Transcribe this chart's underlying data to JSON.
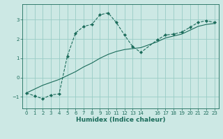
{
  "xlabel": "Humidex (Indice chaleur)",
  "bg_color": "#cce8e4",
  "grid_color": "#99ccc6",
  "line_color": "#1a6b5a",
  "xlim": [
    -0.5,
    23.5
  ],
  "ylim": [
    -1.6,
    3.8
  ],
  "yticks": [
    -1,
    0,
    1,
    2,
    3
  ],
  "xticks": [
    0,
    1,
    2,
    3,
    4,
    5,
    6,
    7,
    8,
    9,
    10,
    11,
    12,
    13,
    14,
    16,
    17,
    18,
    19,
    20,
    21,
    22,
    23
  ],
  "series1_x": [
    0,
    1,
    2,
    3,
    4,
    5,
    6,
    7,
    8,
    9,
    10,
    11,
    12,
    13,
    14,
    16,
    17,
    18,
    19,
    20,
    21,
    22,
    23
  ],
  "series1_y": [
    -0.8,
    -0.95,
    -1.1,
    -0.9,
    -0.85,
    1.1,
    2.3,
    2.65,
    2.75,
    3.25,
    3.35,
    2.85,
    2.2,
    1.6,
    1.3,
    1.95,
    2.2,
    2.25,
    2.35,
    2.6,
    2.85,
    2.95,
    2.85
  ],
  "series2_x": [
    0,
    1,
    2,
    3,
    4,
    5,
    6,
    7,
    8,
    9,
    10,
    11,
    12,
    13,
    14,
    16,
    17,
    18,
    19,
    20,
    21,
    22,
    23
  ],
  "series2_y": [
    -0.8,
    -0.6,
    -0.4,
    -0.25,
    -0.1,
    0.1,
    0.3,
    0.55,
    0.75,
    1.0,
    1.2,
    1.35,
    1.45,
    1.5,
    1.55,
    1.85,
    2.05,
    2.15,
    2.25,
    2.45,
    2.65,
    2.75,
    2.8
  ]
}
